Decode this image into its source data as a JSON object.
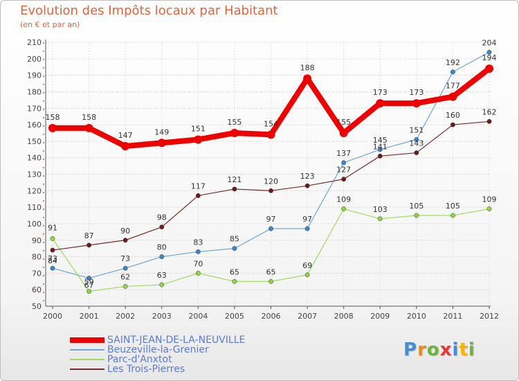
{
  "title": "Evolution des Impôts locaux par Habitant",
  "subtitle": "(en € et par an)",
  "brand": {
    "chars": [
      {
        "c": "P",
        "color": "#3d8fd6"
      },
      {
        "c": "r",
        "color": "#f28a16"
      },
      {
        "c": "o",
        "color": "#6cb33f"
      },
      {
        "c": "x",
        "color": "#e53935"
      },
      {
        "c": "i",
        "color": "#3d8fd6"
      },
      {
        "c": "t",
        "color": "#f7b500"
      },
      {
        "c": "i",
        "color": "#6cb33f"
      }
    ]
  },
  "chart_data": {
    "type": "line",
    "categories": [
      "2000",
      "2001",
      "2002",
      "2003",
      "2004",
      "2005",
      "2006",
      "2007",
      "2008",
      "2009",
      "2010",
      "2011",
      "2012"
    ],
    "ylim": [
      50,
      210
    ],
    "yticks": [
      50,
      60,
      70,
      80,
      90,
      100,
      110,
      120,
      130,
      140,
      150,
      160,
      170,
      180,
      190,
      200,
      210
    ],
    "grid": true,
    "legend_placement": "bottom-left",
    "series": [
      {
        "name": "SAINT-JEAN-DE-LA-NEUVILLE",
        "color": "#ee0000",
        "marker": "#ee0000",
        "width": 8,
        "values": [
          158,
          158,
          147,
          149,
          151,
          155,
          154,
          188,
          155,
          173,
          173,
          177,
          194
        ]
      },
      {
        "name": "Beuzeville-la-Grenier",
        "color": "#6aa6d8",
        "marker": "#3a86c8",
        "width": 1.2,
        "values": [
          73,
          67,
          73,
          80,
          83,
          85,
          97,
          97,
          137,
          145,
          151,
          192,
          204
        ]
      },
      {
        "name": "Parc-d'Anxtot",
        "color": "#9ddb5e",
        "marker": "#8fd444",
        "width": 1.2,
        "values": [
          91,
          59,
          62,
          63,
          70,
          65,
          65,
          69,
          109,
          103,
          105,
          105,
          109
        ]
      },
      {
        "name": "Les Trois-Pierres",
        "color": "#7a2a2a",
        "marker": "#6a1b1b",
        "width": 1.2,
        "values": [
          84,
          87,
          90,
          98,
          117,
          121,
          120,
          123,
          127,
          141,
          143,
          160,
          162
        ]
      }
    ]
  }
}
